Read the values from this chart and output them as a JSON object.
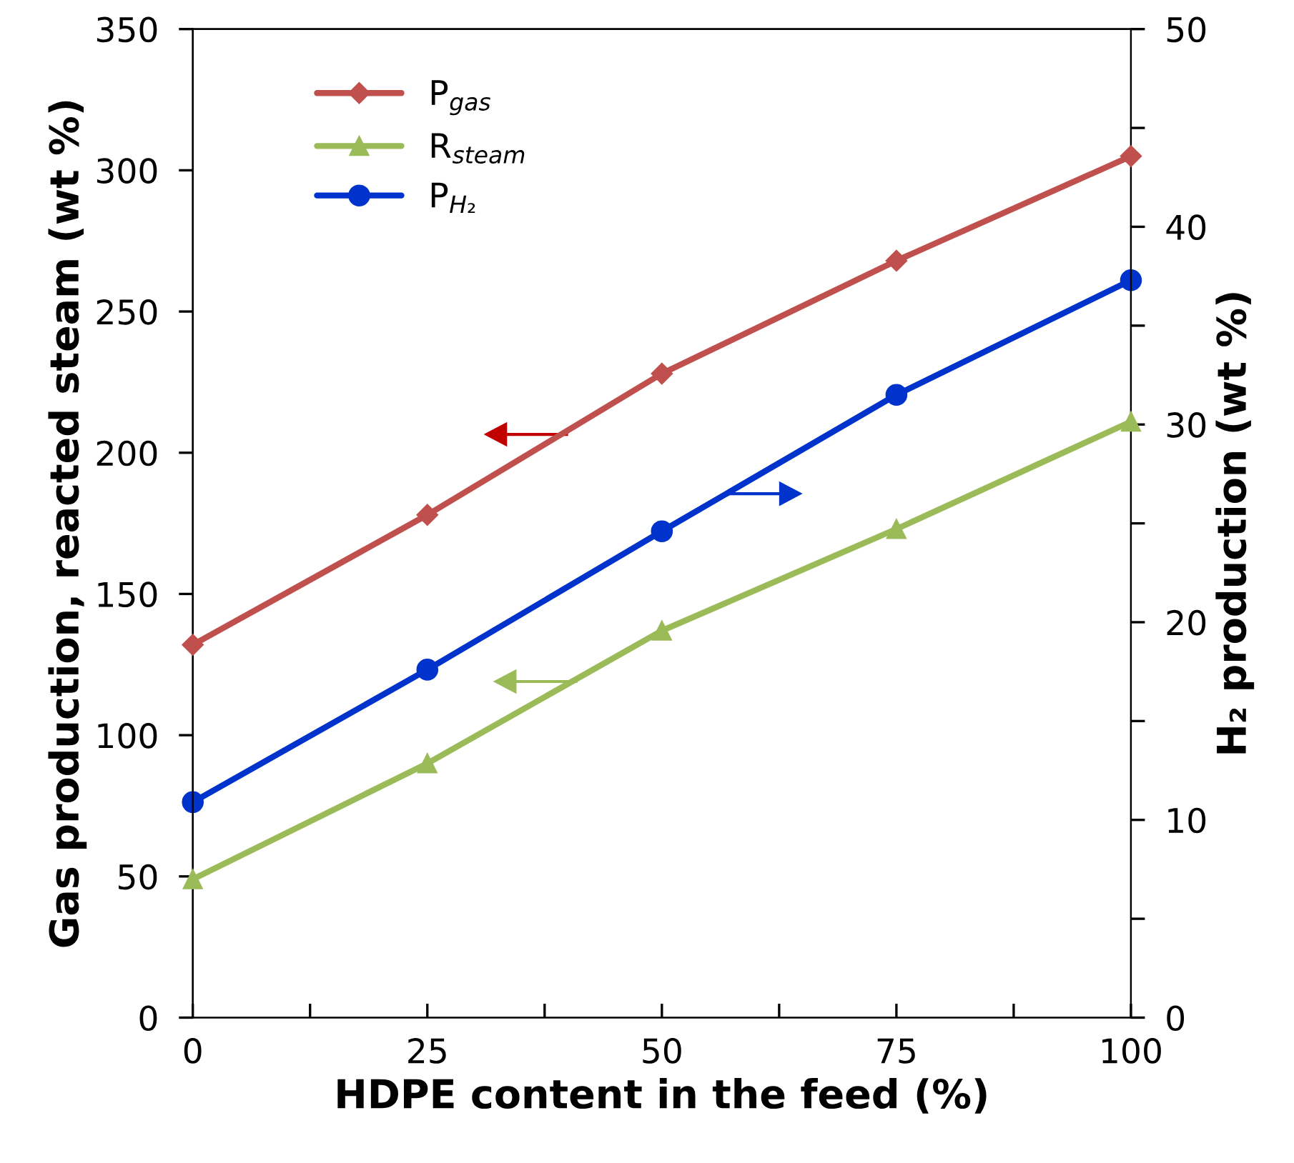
{
  "chart_data": {
    "type": "line",
    "xlabel": "HDPE content in the feed (%)",
    "ylabel": "Gas production, reacted steam (wt %)",
    "y2label": "H₂ production (wt %)",
    "x": [
      0,
      25,
      50,
      75,
      100
    ],
    "series": [
      {
        "name": "P$_{gas}$",
        "color": "#c0504d",
        "marker": "diamond",
        "values": [
          132,
          178,
          228,
          268,
          305
        ]
      },
      {
        "name": "R$_{steam}$",
        "color": "#9bbb59",
        "marker": "triangle",
        "values": [
          49,
          90,
          137,
          173,
          211
        ]
      },
      {
        "name": "P$_{H₂}$",
        "color": "#0033cc",
        "marker": "circle",
        "axis": "y2",
        "values": [
          10.9,
          17.6,
          24.6,
          31.5,
          37.3
        ]
      }
    ],
    "xlim": [
      0,
      100
    ],
    "xticks": [
      0,
      {
        "value": 12.5,
        "label": null
      },
      25,
      {
        "value": 37.5,
        "label": null
      },
      50,
      {
        "value": 62.5,
        "label": null
      },
      75,
      {
        "value": 87.5,
        "label": null
      },
      100
    ],
    "ylim": [
      0,
      350
    ],
    "yticks": [
      0,
      50,
      100,
      150,
      200,
      250,
      300,
      350
    ],
    "y2lim": [
      0,
      50
    ],
    "y2ticks": [
      0,
      {
        "value": 5,
        "label": null
      },
      10,
      {
        "value": 15,
        "label": null
      },
      20,
      {
        "value": 25,
        "label": null
      },
      30,
      {
        "value": 35,
        "label": null
      },
      40,
      {
        "value": 45,
        "label": null
      },
      50
    ],
    "line_style": "solid",
    "grid": false,
    "legend": "top left"
  }
}
